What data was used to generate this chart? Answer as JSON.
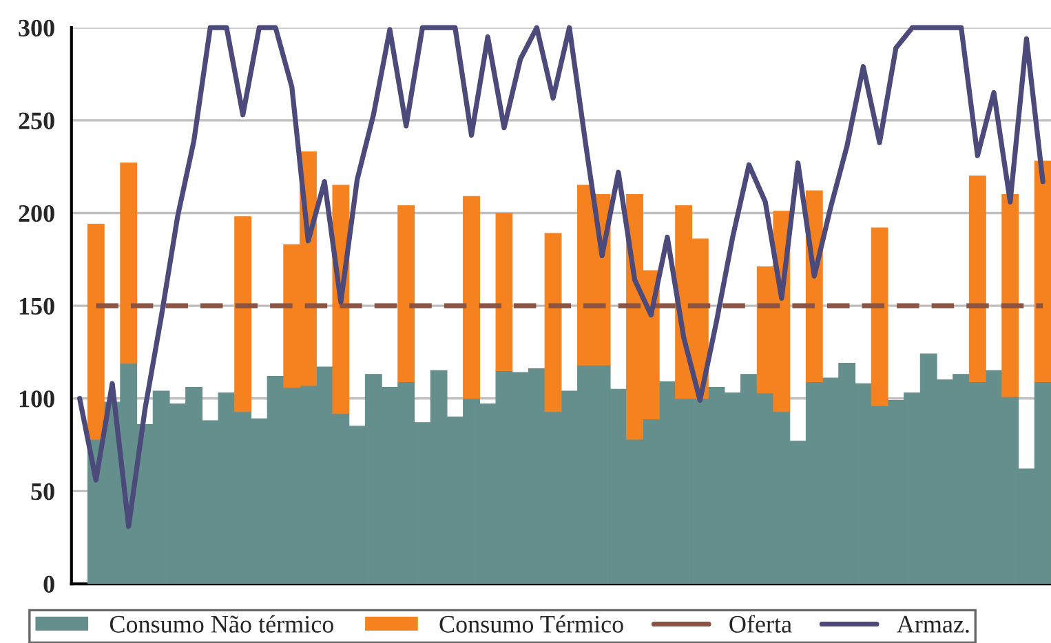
{
  "chart_data": {
    "type": "bar",
    "stacked": true,
    "categories": [
      null,
      null,
      null,
      null,
      null,
      null,
      null,
      null,
      null,
      null,
      null,
      null,
      null,
      null,
      null,
      null,
      null,
      null,
      null,
      null,
      null,
      null,
      null,
      null,
      null,
      null,
      null,
      null,
      null,
      null,
      null,
      null,
      null,
      null,
      null,
      null,
      null,
      null,
      null,
      null,
      null,
      null,
      null,
      null,
      null,
      null,
      null,
      null,
      null,
      null,
      null,
      null,
      null,
      null,
      null,
      null,
      null,
      null,
      null,
      null
    ],
    "series": [
      {
        "name": "Consumo Não térmico",
        "color": "#648f8c",
        "values": [
          null,
          78,
          98,
          119,
          86,
          104,
          97,
          106,
          88,
          103,
          93,
          89,
          112,
          106,
          107,
          117,
          92,
          85,
          113,
          106,
          109,
          87,
          115,
          90,
          100,
          97,
          115,
          114,
          116,
          93,
          104,
          118,
          118,
          105,
          78,
          89,
          109,
          100,
          100,
          106,
          103,
          113,
          103,
          93,
          77,
          109,
          111,
          119,
          108,
          96,
          99,
          103,
          124,
          110,
          113,
          109,
          115,
          101,
          62,
          109
        ]
      },
      {
        "name": "Consumo Térmico",
        "color": "#f5821f",
        "values": [
          null,
          116,
          null,
          108,
          null,
          null,
          null,
          null,
          null,
          null,
          105,
          null,
          null,
          77,
          126,
          null,
          123,
          null,
          null,
          null,
          95,
          null,
          null,
          null,
          109,
          null,
          85,
          null,
          null,
          96,
          null,
          97,
          92,
          null,
          132,
          80,
          null,
          104,
          86,
          null,
          null,
          null,
          68,
          108,
          null,
          103,
          null,
          null,
          null,
          96,
          null,
          null,
          null,
          null,
          null,
          111,
          null,
          109,
          null,
          119
        ]
      },
      {
        "name": "Oferta",
        "type": "line",
        "line_style": "dashed",
        "color": "#8b5442",
        "values": [
          null,
          150,
          150,
          150,
          150,
          150,
          150,
          150,
          150,
          150,
          150,
          150,
          150,
          150,
          150,
          150,
          150,
          150,
          150,
          150,
          150,
          150,
          150,
          150,
          150,
          150,
          150,
          150,
          150,
          150,
          150,
          150,
          150,
          150,
          150,
          150,
          150,
          150,
          150,
          150,
          150,
          150,
          150,
          150,
          150,
          150,
          150,
          150,
          150,
          150,
          150,
          150,
          150,
          150,
          150,
          150,
          150,
          150,
          150,
          150
        ]
      },
      {
        "name": "Armaz.",
        "type": "line",
        "line_style": "solid",
        "color": "#4b4a7a",
        "values": [
          100,
          56,
          108,
          31,
          94,
          144,
          198,
          239,
          300,
          300,
          253,
          300,
          300,
          268,
          185,
          217,
          152,
          218,
          253,
          299,
          247,
          300,
          300,
          300,
          242,
          295,
          246,
          283,
          300,
          262,
          300,
          237,
          177,
          222,
          164,
          145,
          187,
          133,
          99,
          141,
          187,
          226,
          206,
          154,
          227,
          166,
          203,
          236,
          279,
          238,
          289,
          300,
          300,
          300,
          300,
          231,
          265,
          206,
          294,
          217
        ]
      }
    ],
    "ylim": [
      0,
      300
    ],
    "yticks": [
      0,
      50,
      100,
      150,
      200,
      250,
      300
    ],
    "grid": "y",
    "legend": "bottom",
    "tick_labels": "y"
  }
}
